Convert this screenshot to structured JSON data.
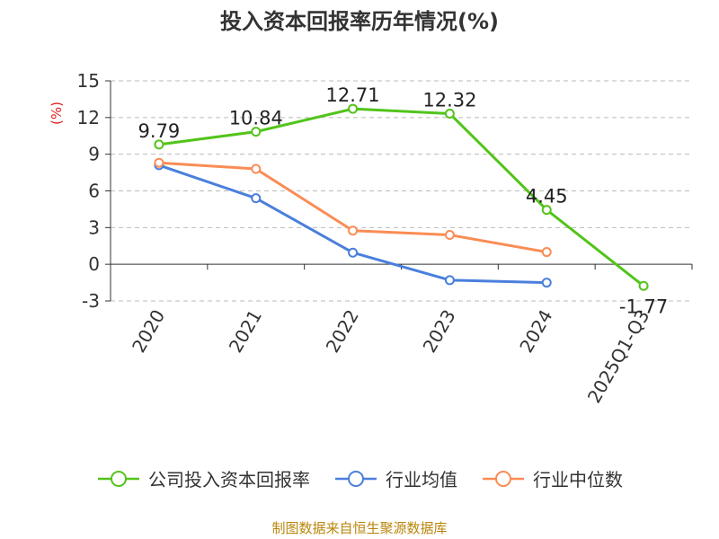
{
  "title": "投入资本回报率历年情况(%)",
  "ylabel": "(%)",
  "source": "制图数据来自恒生聚源数据库",
  "chart_data": {
    "type": "line",
    "title": "投入资本回报率历年情况(%)",
    "xlabel": "",
    "ylabel": "(%)",
    "categories": [
      "2020",
      "2021",
      "2022",
      "2023",
      "2024",
      "2025Q1-Q3"
    ],
    "ylim": [
      -3,
      15
    ],
    "yticks": [
      15,
      12,
      9,
      6,
      3,
      0,
      -3
    ],
    "grid": true,
    "legend_position": "bottom",
    "series": [
      {
        "name": "公司投入资本回报率",
        "color": "#52c41a",
        "values": [
          9.79,
          10.84,
          12.71,
          12.32,
          4.45,
          -1.77
        ],
        "labels": [
          "9.79",
          "10.84",
          "12.71",
          "12.32",
          "4.45",
          "-1.77"
        ]
      },
      {
        "name": "行业均值",
        "color": "#4a7fdc",
        "values": [
          8.1,
          5.4,
          0.95,
          -1.3,
          -1.5,
          null
        ]
      },
      {
        "name": "行业中位数",
        "color": "#fa8c55",
        "values": [
          8.3,
          7.8,
          2.75,
          2.4,
          1.0,
          null
        ]
      }
    ]
  }
}
